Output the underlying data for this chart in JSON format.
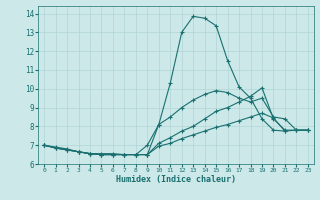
{
  "title": "",
  "xlabel": "Humidex (Indice chaleur)",
  "xlim": [
    -0.5,
    23.5
  ],
  "ylim": [
    6,
    14.4
  ],
  "yticks": [
    6,
    7,
    8,
    9,
    10,
    11,
    12,
    13,
    14
  ],
  "xticks": [
    0,
    1,
    2,
    3,
    4,
    5,
    6,
    7,
    8,
    9,
    10,
    11,
    12,
    13,
    14,
    15,
    16,
    17,
    18,
    19,
    20,
    21,
    22,
    23
  ],
  "bg_color": "#cce8e8",
  "line_color": "#1a7070",
  "grid_color": "#b0d4d4",
  "lines": [
    {
      "x": [
        0,
        1,
        2,
        3,
        4,
        5,
        6,
        7,
        8,
        9,
        10,
        11,
        12,
        13,
        14,
        15,
        16,
        17,
        18,
        19,
        20,
        21
      ],
      "y": [
        7.0,
        6.9,
        6.8,
        6.65,
        6.55,
        6.55,
        6.55,
        6.5,
        6.5,
        6.5,
        8.1,
        10.3,
        13.0,
        13.85,
        13.75,
        13.35,
        11.5,
        10.1,
        9.5,
        8.4,
        7.8,
        7.75
      ]
    },
    {
      "x": [
        0,
        1,
        2,
        3,
        4,
        5,
        6,
        7,
        8,
        9,
        10,
        11,
        12,
        13,
        14,
        15,
        16,
        17,
        18,
        19,
        20,
        21,
        22,
        23
      ],
      "y": [
        7.0,
        6.85,
        6.75,
        6.65,
        6.55,
        6.5,
        6.5,
        6.5,
        6.5,
        7.0,
        8.1,
        8.5,
        9.0,
        9.4,
        9.7,
        9.9,
        9.8,
        9.5,
        9.3,
        9.5,
        8.5,
        8.4,
        7.8,
        7.8
      ]
    },
    {
      "x": [
        0,
        1,
        2,
        3,
        4,
        5,
        6,
        7,
        8,
        9,
        10,
        11,
        12,
        13,
        14,
        15,
        16,
        17,
        18,
        19,
        20,
        21,
        22,
        23
      ],
      "y": [
        7.0,
        6.85,
        6.75,
        6.65,
        6.55,
        6.5,
        6.5,
        6.5,
        6.5,
        6.5,
        7.1,
        7.4,
        7.75,
        8.0,
        8.4,
        8.8,
        9.0,
        9.3,
        9.6,
        10.05,
        8.4,
        7.8,
        7.8,
        7.8
      ]
    },
    {
      "x": [
        0,
        1,
        2,
        3,
        4,
        5,
        6,
        7,
        8,
        9,
        10,
        11,
        12,
        13,
        14,
        15,
        16,
        17,
        18,
        19,
        20,
        21,
        22,
        23
      ],
      "y": [
        7.0,
        6.85,
        6.75,
        6.65,
        6.55,
        6.5,
        6.5,
        6.5,
        6.5,
        6.5,
        6.95,
        7.1,
        7.35,
        7.55,
        7.75,
        7.95,
        8.1,
        8.3,
        8.5,
        8.7,
        8.45,
        7.75,
        7.8,
        7.8
      ]
    }
  ]
}
